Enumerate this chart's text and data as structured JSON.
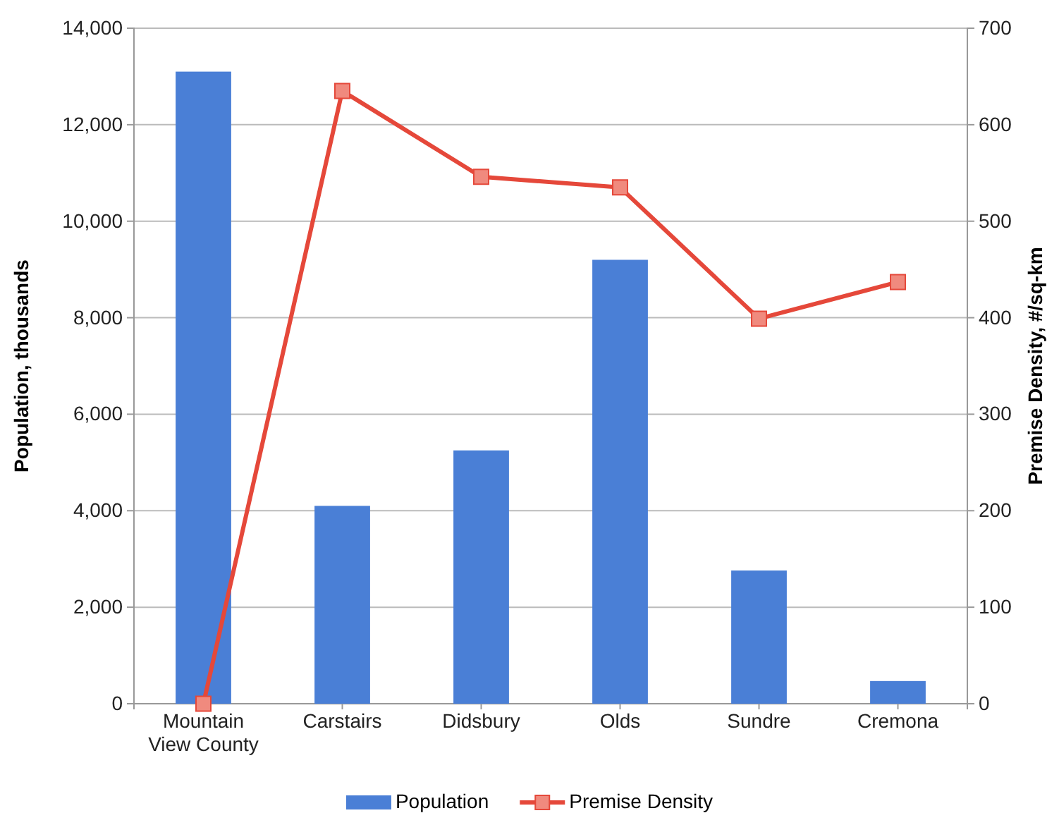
{
  "chart_data": {
    "type": "bar",
    "categories": [
      "Mountain View County",
      "Carstairs",
      "Didsbury",
      "Olds",
      "Sundre",
      "Cremona"
    ],
    "series": [
      {
        "name": "Population",
        "color": "#4a7fd6",
        "values": [
          13100,
          4100,
          5250,
          9200,
          2760,
          470
        ]
      },
      {
        "name": "Premise Density",
        "type": "line",
        "axis": "y2",
        "color": "#e5483a",
        "marker": "square",
        "values": [
          0,
          635,
          546,
          535,
          399,
          437
        ]
      }
    ],
    "ylabel": "Population, thousands",
    "y2label": "Premise Density, #/sq-km",
    "ylim": [
      0,
      14000
    ],
    "yticks": [
      {
        "value": 0,
        "label": "0"
      },
      {
        "value": 2000,
        "label": "2,000"
      },
      {
        "value": 4000,
        "label": "4,000"
      },
      {
        "value": 6000,
        "label": "6,000"
      },
      {
        "value": 8000,
        "label": "8,000"
      },
      {
        "value": 10000,
        "label": "10,000"
      },
      {
        "value": 12000,
        "label": "12,000"
      },
      {
        "value": 14000,
        "label": "14,000"
      }
    ],
    "y2lim": [
      0,
      700
    ],
    "y2ticks": [
      0,
      100,
      200,
      300,
      400,
      500,
      600,
      700
    ],
    "grid": "y",
    "legend": "bottom"
  }
}
